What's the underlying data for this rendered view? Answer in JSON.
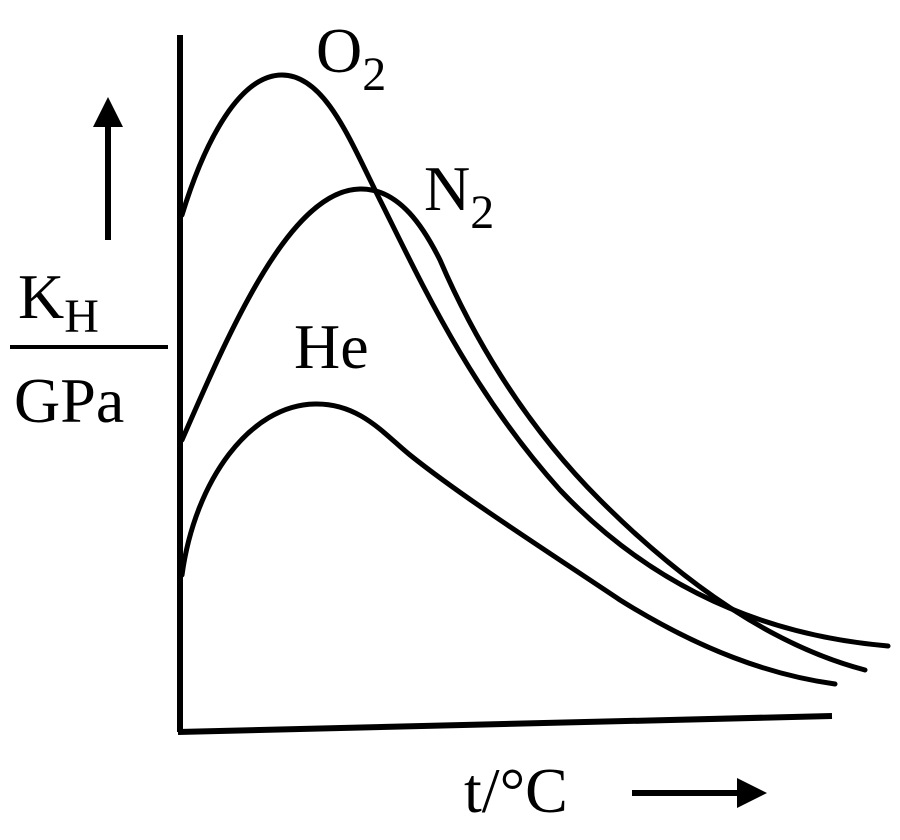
{
  "axes": {
    "y_label": {
      "main": "K",
      "sub": "H",
      "denominator": "GPa"
    },
    "x_label": "t/°C"
  },
  "curves": [
    {
      "label": {
        "main": "O",
        "sub": "2"
      }
    },
    {
      "label": {
        "main": "N",
        "sub": "2"
      }
    },
    {
      "label": {
        "main": "He"
      }
    }
  ]
}
